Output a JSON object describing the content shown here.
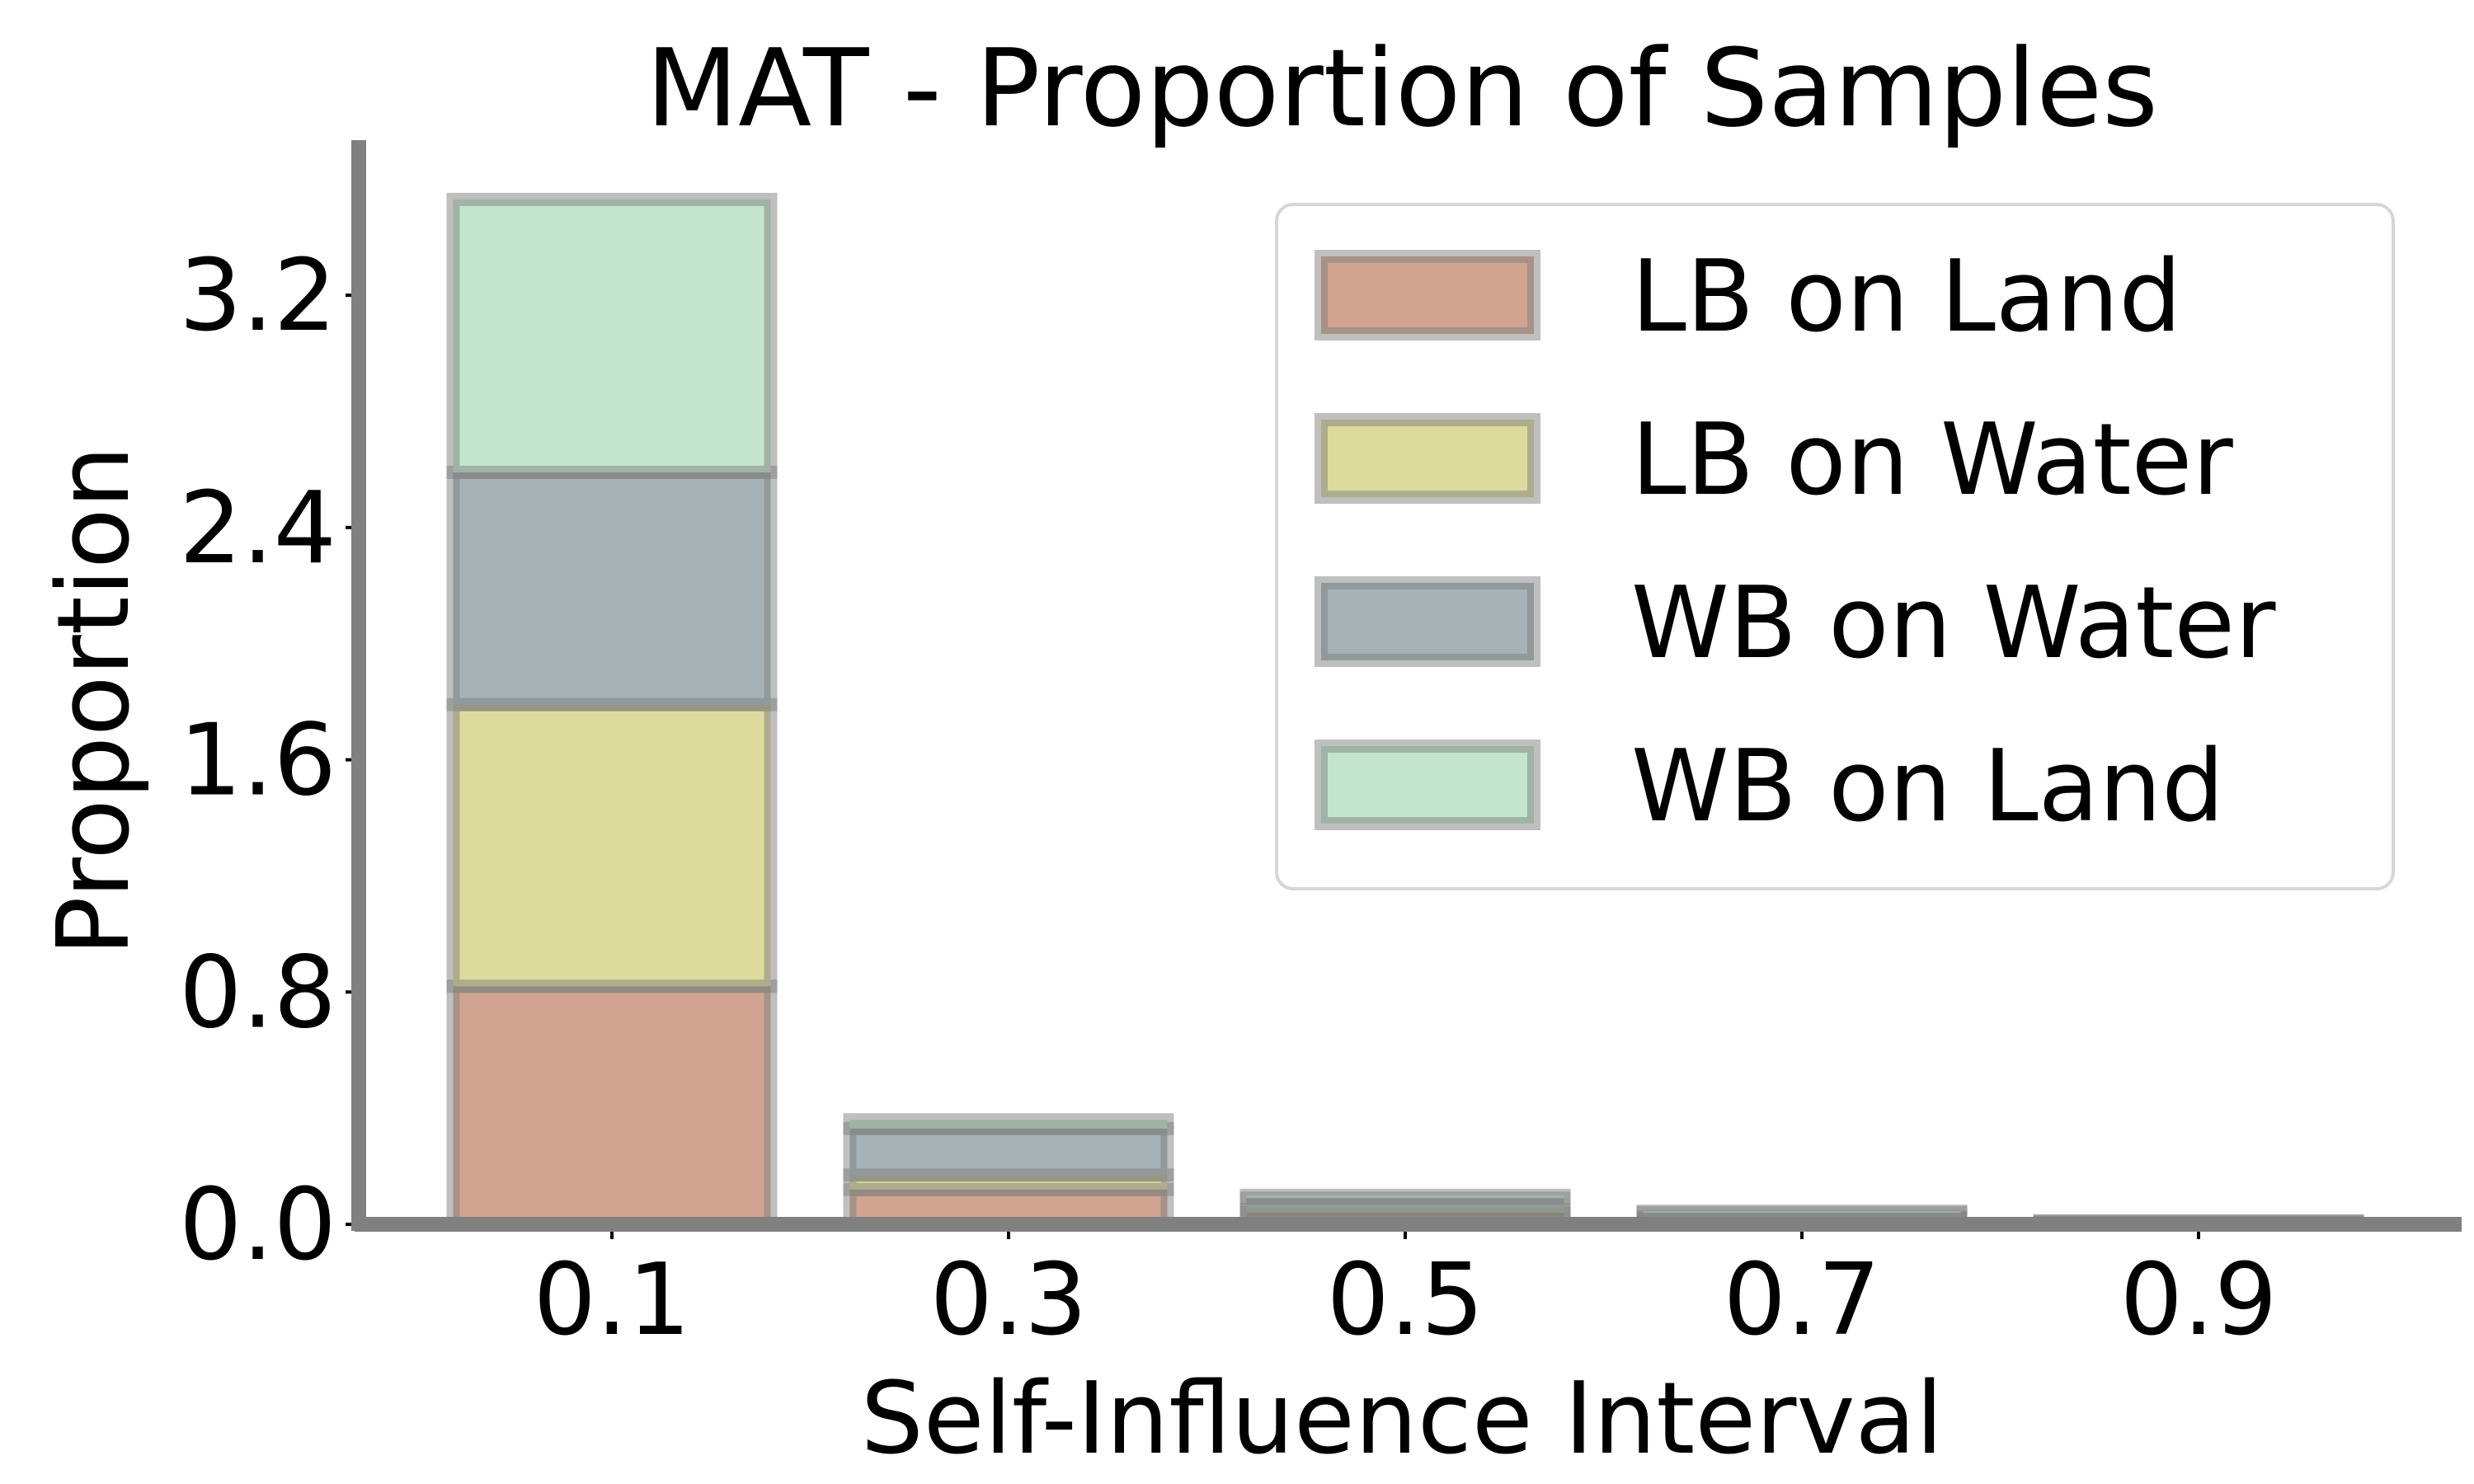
{
  "chart_data": {
    "type": "bar",
    "stacked": true,
    "title": "MAT - Proportion of Samples",
    "xlabel": "Self-Influence Interval",
    "ylabel": "Proportion",
    "categories": [
      "0.1",
      "0.3",
      "0.5",
      "0.7",
      "0.9"
    ],
    "yticks": [
      "0.0",
      "0.8",
      "1.6",
      "2.4",
      "3.2"
    ],
    "ylim": [
      0,
      3.72
    ],
    "grid": false,
    "legend_position": "top-right",
    "series": [
      {
        "name": "LB on Land",
        "color": "#d0a490",
        "values": [
          0.82,
          0.12,
          0.04,
          0.02,
          0.005
        ]
      },
      {
        "name": "LB on Water",
        "color": "#dcdb9c",
        "values": [
          0.97,
          0.05,
          0.01,
          0.005,
          0.002
        ]
      },
      {
        "name": "WB on Water",
        "color": "#a7b2b6",
        "values": [
          0.8,
          0.16,
          0.04,
          0.015,
          0.003
        ]
      },
      {
        "name": "WB on Land",
        "color": "#c4e5cf",
        "values": [
          0.94,
          0.03,
          0.01,
          0.005,
          0.002
        ]
      }
    ]
  }
}
